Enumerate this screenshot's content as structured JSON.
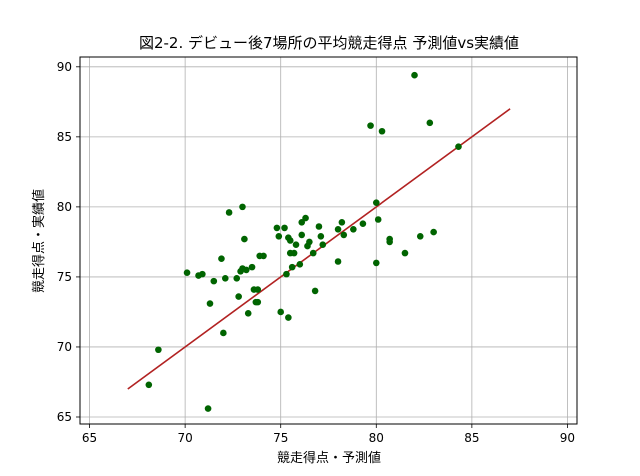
{
  "chart_data": {
    "type": "scatter",
    "title": "図2-2. デビュー後7場所の平均競走得点 予測値vs実績値",
    "xlabel": "競走得点・予測値",
    "ylabel": "競走得点・実績値",
    "xlim": [
      64.5,
      90.5
    ],
    "ylim": [
      64.5,
      90.7
    ],
    "xticks": [
      65,
      70,
      75,
      80,
      85,
      90
    ],
    "yticks": [
      65,
      70,
      75,
      80,
      85,
      90
    ],
    "grid": true,
    "colors": {
      "points": "#006400",
      "fit_line": "#b22222",
      "grid": "#b0b0b0"
    },
    "series": [
      {
        "kind": "points",
        "points": [
          [
            68.1,
            67.3
          ],
          [
            68.6,
            69.8
          ],
          [
            70.1,
            75.3
          ],
          [
            70.7,
            75.1
          ],
          [
            70.9,
            75.2
          ],
          [
            71.2,
            65.6
          ],
          [
            71.3,
            73.1
          ],
          [
            71.5,
            74.7
          ],
          [
            71.9,
            76.3
          ],
          [
            72.0,
            71.0
          ],
          [
            72.1,
            74.9
          ],
          [
            72.3,
            79.6
          ],
          [
            72.7,
            74.9
          ],
          [
            72.8,
            73.6
          ],
          [
            72.9,
            75.4
          ],
          [
            73.0,
            75.6
          ],
          [
            73.0,
            80.0
          ],
          [
            73.1,
            77.7
          ],
          [
            73.2,
            75.5
          ],
          [
            73.3,
            72.4
          ],
          [
            73.5,
            75.7
          ],
          [
            73.6,
            74.1
          ],
          [
            73.7,
            73.2
          ],
          [
            73.8,
            74.1
          ],
          [
            73.8,
            73.2
          ],
          [
            73.9,
            76.5
          ],
          [
            74.1,
            76.5
          ],
          [
            74.8,
            78.5
          ],
          [
            74.9,
            77.9
          ],
          [
            75.0,
            72.5
          ],
          [
            75.2,
            78.5
          ],
          [
            75.3,
            75.2
          ],
          [
            75.4,
            77.8
          ],
          [
            75.4,
            72.1
          ],
          [
            75.5,
            76.7
          ],
          [
            75.5,
            77.6
          ],
          [
            75.6,
            75.7
          ],
          [
            75.7,
            76.7
          ],
          [
            75.8,
            77.3
          ],
          [
            76.0,
            75.9
          ],
          [
            76.1,
            78.9
          ],
          [
            76.1,
            78.0
          ],
          [
            76.3,
            79.2
          ],
          [
            76.4,
            77.2
          ],
          [
            76.5,
            77.5
          ],
          [
            76.7,
            76.7
          ],
          [
            76.8,
            74.0
          ],
          [
            77.0,
            78.6
          ],
          [
            77.2,
            77.3
          ],
          [
            77.1,
            77.9
          ],
          [
            78.0,
            78.4
          ],
          [
            78.0,
            76.1
          ],
          [
            78.2,
            78.9
          ],
          [
            78.3,
            78.0
          ],
          [
            78.8,
            78.4
          ],
          [
            79.3,
            78.8
          ],
          [
            79.7,
            85.8
          ],
          [
            80.0,
            80.3
          ],
          [
            80.1,
            79.1
          ],
          [
            80.0,
            76.0
          ],
          [
            80.3,
            85.4
          ],
          [
            80.7,
            77.5
          ],
          [
            80.7,
            77.7
          ],
          [
            81.5,
            76.7
          ],
          [
            82.0,
            89.4
          ],
          [
            82.3,
            77.9
          ],
          [
            82.8,
            86.0
          ],
          [
            83.0,
            78.2
          ],
          [
            84.3,
            84.3
          ]
        ]
      },
      {
        "kind": "fit_line",
        "x": [
          67.0,
          87.0
        ],
        "y": [
          67.0,
          87.0
        ]
      }
    ]
  }
}
